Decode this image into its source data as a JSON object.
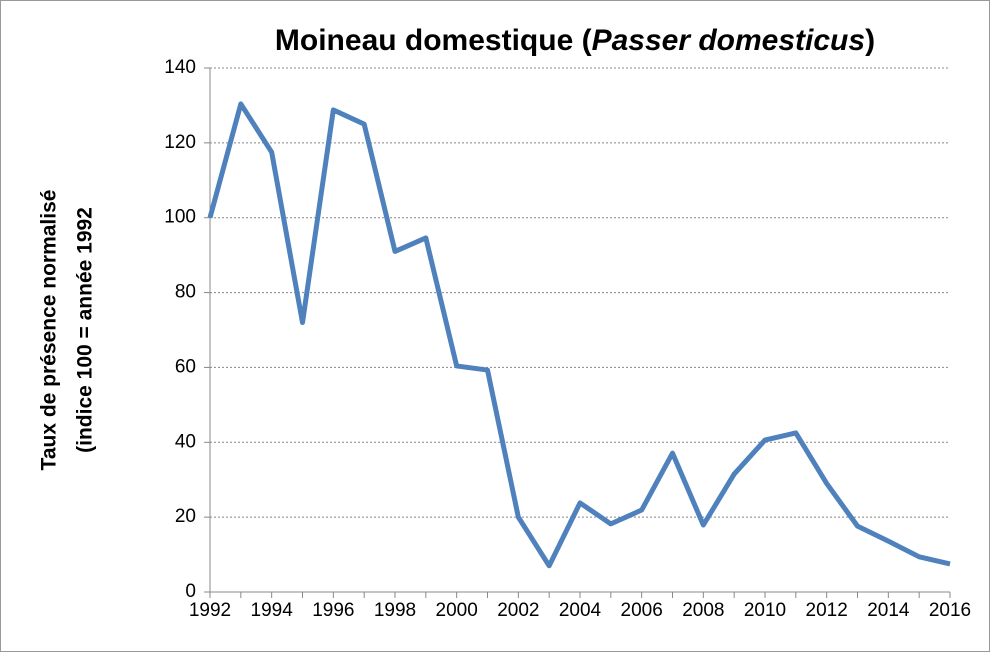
{
  "chart_data": {
    "type": "line",
    "title": [
      "Moineau domestique (",
      "Passer domesticus",
      ")"
    ],
    "y_label": [
      "Taux de présence normalisé",
      "(indice 100 = année 1992"
    ],
    "x": [
      1992,
      1993,
      1994,
      1995,
      1996,
      1997,
      1998,
      1999,
      2000,
      2001,
      2002,
      2003,
      2004,
      2005,
      2006,
      2007,
      2008,
      2009,
      2010,
      2011,
      2012,
      2013,
      2014,
      2015,
      2016
    ],
    "values": [
      100,
      130.4,
      117.5,
      72,
      128.8,
      125,
      91,
      94.6,
      60.4,
      59.3,
      20,
      7,
      23.8,
      18.2,
      21.9,
      37.1,
      17.9,
      31.5,
      40.6,
      42.5,
      29,
      17.6,
      13.6,
      9.4,
      7.5
    ],
    "color": "#4f81bd",
    "xlim": [
      1992,
      2016
    ],
    "xticks": [
      1992,
      1994,
      1996,
      1998,
      2000,
      2002,
      2004,
      2006,
      2008,
      2010,
      2012,
      2014,
      2016
    ],
    "ylim": [
      0,
      140
    ],
    "yticks": [
      0,
      20,
      40,
      60,
      80,
      100,
      120,
      140
    ],
    "grid": true
  }
}
